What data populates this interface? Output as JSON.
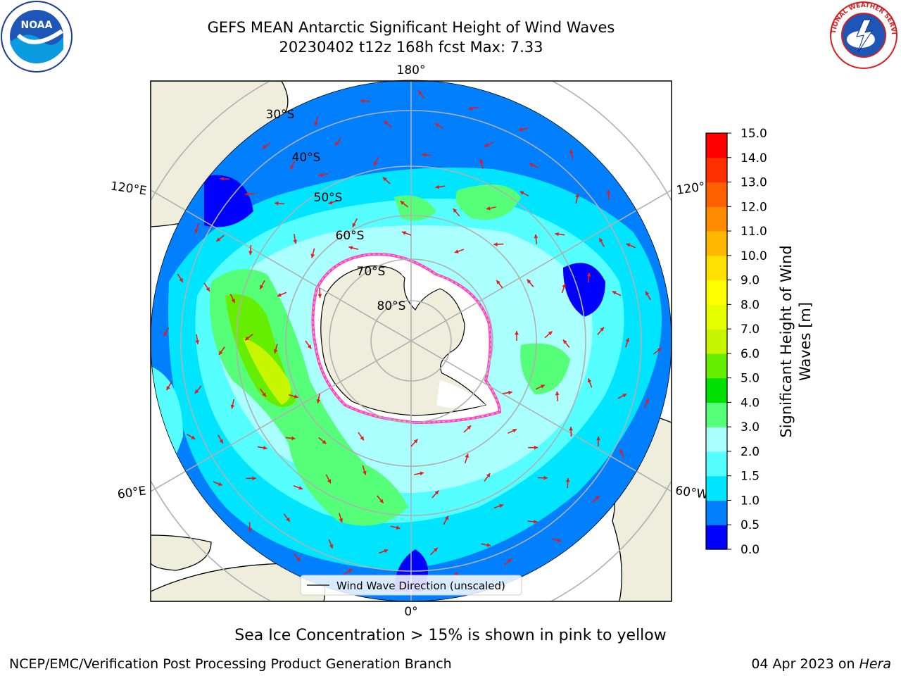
{
  "title": {
    "line1": "GEFS MEAN Antarctic Significant Height of Wind Waves",
    "line2": "20230402 t12z 168h fcst   Max: 7.33"
  },
  "logos": {
    "left": "noaa-logo",
    "left_text": "NOAA",
    "right": "nws-logo",
    "right_text": "NATIONAL WEATHER SERVICE"
  },
  "map": {
    "projection": "south-polar-stereographic",
    "longitude_labels": [
      "180°",
      "120°E",
      "120°",
      "60°E",
      "60°W",
      "0°"
    ],
    "latitude_labels": [
      "30°S",
      "40°S",
      "50°S",
      "60°S",
      "70°S",
      "80°S"
    ],
    "legend_label": "Wind Wave Direction (unscaled)",
    "arrow_color": "#e41a1c",
    "sea_ice_colors": [
      "#ff33ff",
      "#ffcc00"
    ]
  },
  "colorbar": {
    "label": "Significant Height of Wind Waves [m]",
    "label_line1": "Significant Height of Wind",
    "label_line2": "Waves [m]",
    "ticks": [
      "0.0",
      "0.5",
      "1.0",
      "1.5",
      "2.0",
      "3.0",
      "4.0",
      "5.0",
      "6.0",
      "7.0",
      "8.0",
      "9.0",
      "10.0",
      "11.0",
      "12.0",
      "13.0",
      "14.0",
      "15.0"
    ],
    "colors": [
      "#0000ff",
      "#0080ff",
      "#00e5ff",
      "#55ffff",
      "#aaffff",
      "#55ff77",
      "#00e000",
      "#66ee00",
      "#c8f500",
      "#e6ff00",
      "#ffff00",
      "#ffe000",
      "#ffb800",
      "#ff8c00",
      "#ff6000",
      "#ff3000",
      "#ff0000"
    ]
  },
  "footer": {
    "sea_ice_note": "Sea Ice Concentration > 15% is shown in pink to yellow",
    "credit": "NCEP/EMC/Verification Post Processing Product Generation Branch",
    "date": "04 Apr 2023 on ",
    "system": "Hera"
  }
}
